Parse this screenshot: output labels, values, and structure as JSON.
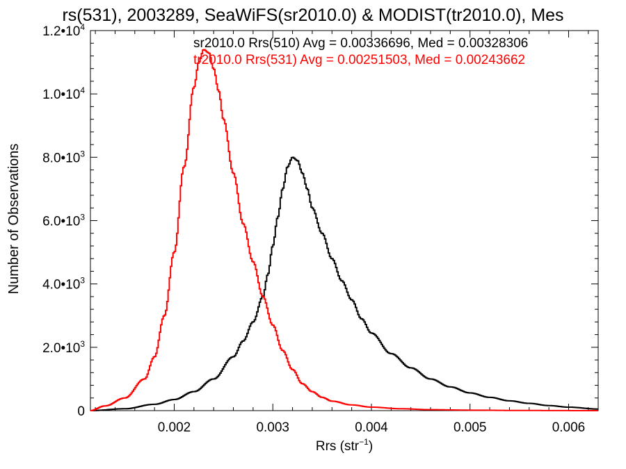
{
  "chart_data": {
    "type": "line",
    "title": "rs(531), 2003289, SeaWiFS(sr2010.0) & MODIST(tr2010.0), Mes",
    "xlabel": "Rrs (str",
    "xlabel_sup": "−1",
    "xlabel_close": ")",
    "ylabel": "Number of Observations",
    "xlim": [
      0.00115,
      0.0063
    ],
    "ylim": [
      0,
      12000
    ],
    "grid": false,
    "legend_placement": "top-right",
    "x_ticks": [
      {
        "value": 0.002,
        "label": "0.002"
      },
      {
        "value": 0.003,
        "label": "0.003"
      },
      {
        "value": 0.004,
        "label": "0.004"
      },
      {
        "value": 0.005,
        "label": "0.005"
      },
      {
        "value": 0.006,
        "label": "0.006"
      }
    ],
    "y_ticks": [
      {
        "value": 0,
        "label": "0"
      },
      {
        "value": 2000,
        "mantissa": "2.0",
        "base": "•10",
        "exp": "3"
      },
      {
        "value": 4000,
        "mantissa": "4.0",
        "base": "•10",
        "exp": "3"
      },
      {
        "value": 6000,
        "mantissa": "6.0",
        "base": "•10",
        "exp": "3"
      },
      {
        "value": 8000,
        "mantissa": "8.0",
        "base": "•10",
        "exp": "3"
      },
      {
        "value": 10000,
        "mantissa": "1.0",
        "base": "•10",
        "exp": "4"
      },
      {
        "value": 12000,
        "mantissa": "1.2",
        "base": "•10",
        "exp": "4"
      }
    ],
    "series": [
      {
        "name": "sr2010.0 Rrs(510) Avg = 0.00336696, Med = 0.00328306",
        "color": "#000000",
        "x": [
          0.00115,
          0.0015,
          0.0018,
          0.002,
          0.0022,
          0.0024,
          0.0026,
          0.0027,
          0.0028,
          0.0029,
          0.00295,
          0.003,
          0.00305,
          0.0031,
          0.00315,
          0.0032,
          0.00325,
          0.0033,
          0.00335,
          0.0034,
          0.0035,
          0.0036,
          0.0037,
          0.0038,
          0.0039,
          0.004,
          0.0042,
          0.0044,
          0.0046,
          0.0048,
          0.005,
          0.0052,
          0.0054,
          0.0056,
          0.0058,
          0.006,
          0.0063
        ],
        "y": [
          0,
          60,
          200,
          350,
          600,
          1000,
          1700,
          2200,
          2800,
          3600,
          4300,
          5200,
          6100,
          7000,
          7700,
          8000,
          7900,
          7500,
          7000,
          6400,
          5600,
          4800,
          4100,
          3500,
          2900,
          2450,
          1800,
          1350,
          1000,
          750,
          560,
          420,
          310,
          230,
          160,
          110,
          50
        ]
      },
      {
        "name": "tr2010.0 Rrs(531) Avg = 0.00251503, Med = 0.00243662",
        "color": "#ff0000",
        "x": [
          0.00115,
          0.0013,
          0.0015,
          0.0017,
          0.0018,
          0.0019,
          0.002,
          0.0021,
          0.0022,
          0.00225,
          0.0023,
          0.00235,
          0.0024,
          0.00245,
          0.0025,
          0.0026,
          0.0027,
          0.0028,
          0.0029,
          0.003,
          0.0031,
          0.0032,
          0.0033,
          0.0034,
          0.0035,
          0.0036,
          0.0038,
          0.004,
          0.0043,
          0.0046,
          0.005,
          0.0055,
          0.0063
        ],
        "y": [
          0,
          150,
          400,
          1000,
          1700,
          3000,
          5000,
          7700,
          10200,
          11000,
          11400,
          11300,
          10800,
          10100,
          9200,
          7500,
          5900,
          4700,
          3600,
          2700,
          1900,
          1300,
          850,
          600,
          420,
          300,
          180,
          110,
          60,
          30,
          15,
          5,
          0
        ]
      }
    ]
  }
}
